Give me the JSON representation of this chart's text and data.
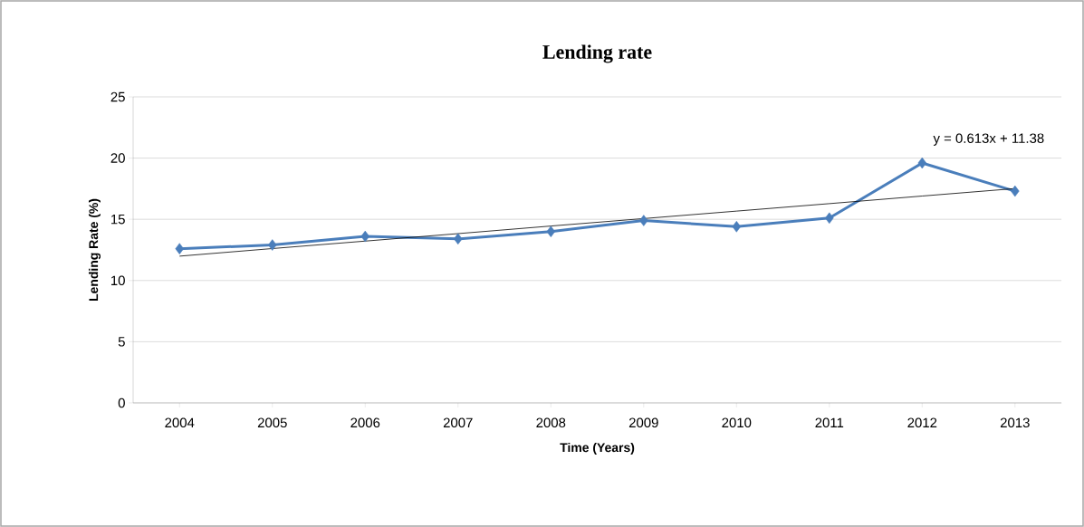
{
  "chart_data": {
    "type": "line",
    "title": "Lending rate",
    "xlabel": "Time (Years)",
    "ylabel": "Lending Rate (%)",
    "categories": [
      "2004",
      "2005",
      "2006",
      "2007",
      "2008",
      "2009",
      "2010",
      "2011",
      "2012",
      "2013"
    ],
    "series": [
      {
        "color": "#4a7ebb",
        "values": [
          12.6,
          12.9,
          13.6,
          13.4,
          14.0,
          14.9,
          14.4,
          15.1,
          19.6,
          17.3
        ]
      },
      {
        "type": "line",
        "color": "#000000",
        "marker": "none",
        "values": [
          11.99,
          12.61,
          13.22,
          13.83,
          14.45,
          15.06,
          15.67,
          16.28,
          16.9,
          17.51
        ]
      }
    ],
    "annotations": [
      "y = 0.613x + 11.38"
    ],
    "ylim": [
      0,
      25
    ],
    "yticks": [
      0,
      5,
      10,
      15,
      20,
      25
    ],
    "grid": "y",
    "marker": "diamond"
  }
}
